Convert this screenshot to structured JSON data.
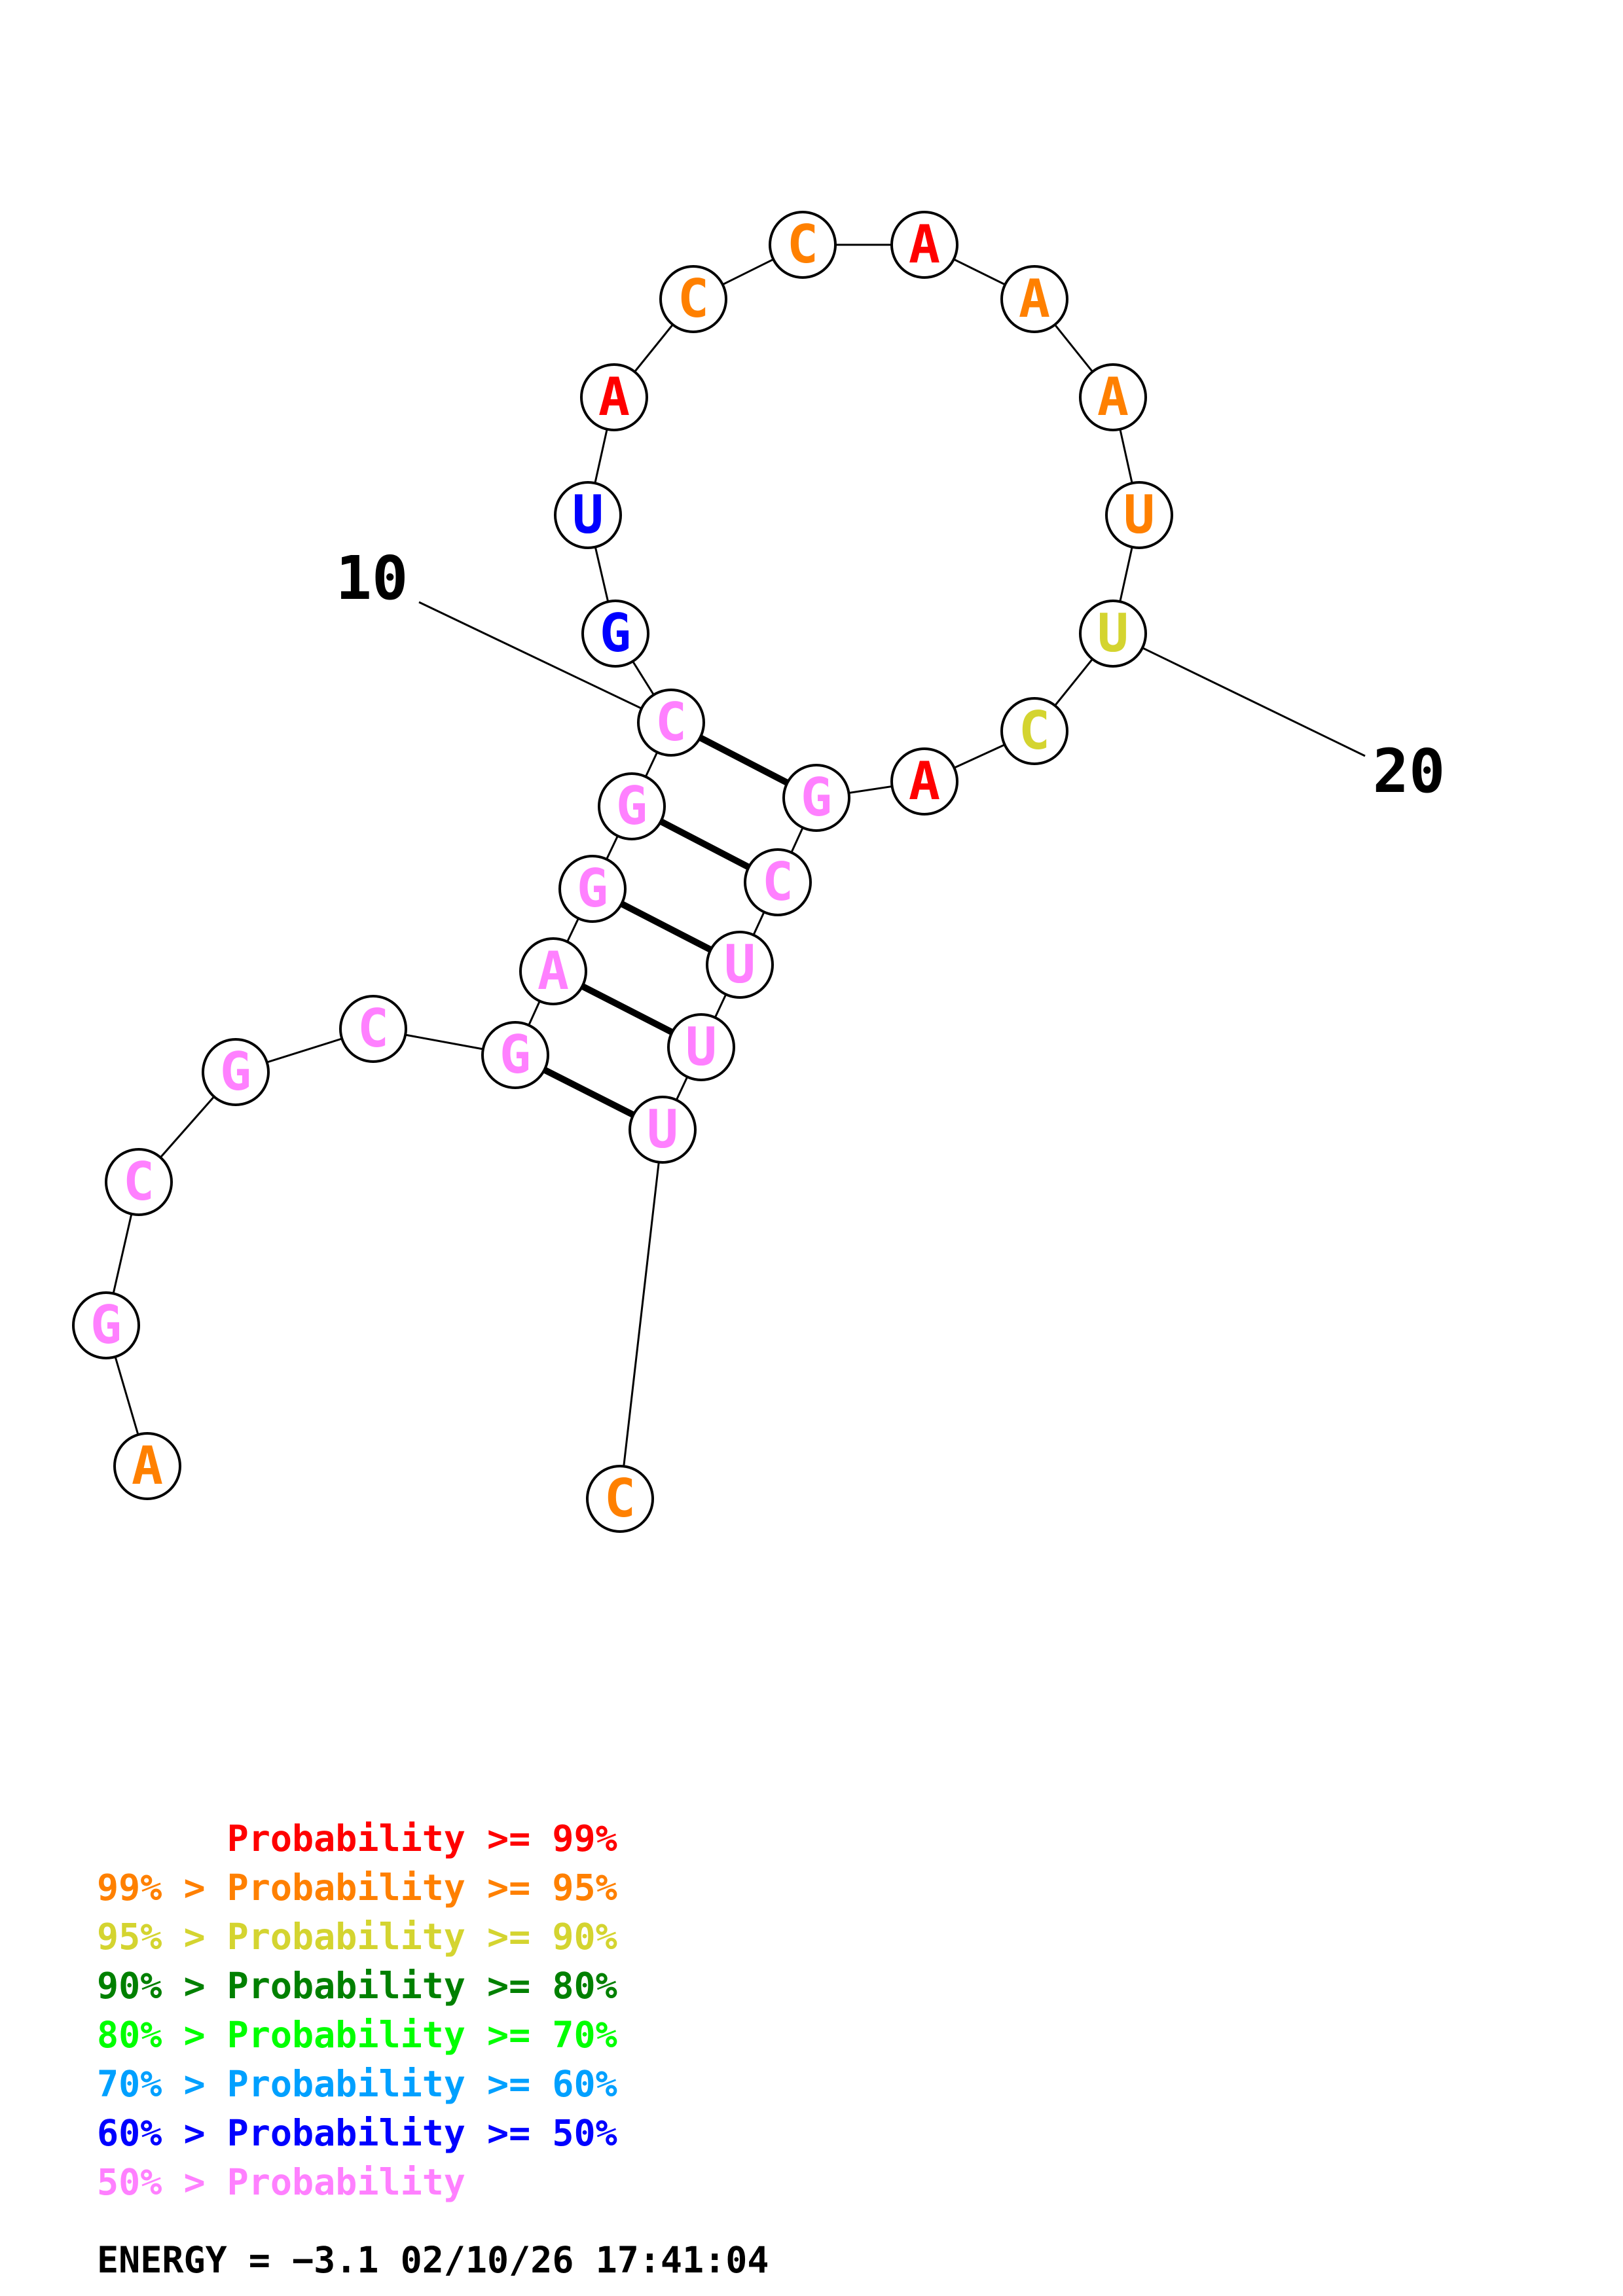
{
  "diagram": {
    "bases": [
      {
        "n": 1,
        "base": "A",
        "prob": ">=99-95"
      },
      {
        "n": 2,
        "base": "G",
        "prob": "<50"
      },
      {
        "n": 3,
        "base": "C",
        "prob": "<50"
      },
      {
        "n": 4,
        "base": "G",
        "prob": "<50"
      },
      {
        "n": 5,
        "base": "C",
        "prob": "<50"
      },
      {
        "n": 6,
        "base": "G",
        "prob": "<50"
      },
      {
        "n": 7,
        "base": "A",
        "prob": "<50"
      },
      {
        "n": 8,
        "base": "G",
        "prob": "<50"
      },
      {
        "n": 9,
        "base": "G",
        "prob": "<50"
      },
      {
        "n": 10,
        "base": "C",
        "prob": "<50"
      },
      {
        "n": 11,
        "base": "G",
        "prob": "60-50"
      },
      {
        "n": 12,
        "base": "U",
        "prob": "60-50"
      },
      {
        "n": 13,
        "base": "A",
        "prob": ">=99"
      },
      {
        "n": 14,
        "base": "C",
        "prob": "99-95"
      },
      {
        "n": 15,
        "base": "C",
        "prob": "99-95"
      },
      {
        "n": 16,
        "base": "A",
        "prob": ">=99"
      },
      {
        "n": 17,
        "base": "A",
        "prob": "99-95"
      },
      {
        "n": 18,
        "base": "A",
        "prob": "99-95"
      },
      {
        "n": 19,
        "base": "U",
        "prob": "99-95"
      },
      {
        "n": 20,
        "base": "U",
        "prob": "95-90"
      },
      {
        "n": 21,
        "base": "C",
        "prob": "95-90"
      },
      {
        "n": 22,
        "base": "A",
        "prob": ">=99"
      },
      {
        "n": 23,
        "base": "G",
        "prob": "<50"
      },
      {
        "n": 24,
        "base": "C",
        "prob": "<50"
      },
      {
        "n": 25,
        "base": "U",
        "prob": "<50"
      },
      {
        "n": 26,
        "base": "U",
        "prob": "<50"
      },
      {
        "n": 27,
        "base": "U",
        "prob": "<50"
      },
      {
        "n": 28,
        "base": "C",
        "prob": "99-95"
      }
    ],
    "pairs": [
      [
        6,
        27
      ],
      [
        7,
        26
      ],
      [
        8,
        25
      ],
      [
        9,
        24
      ],
      [
        10,
        23
      ]
    ],
    "position_labels": [
      {
        "text": "10",
        "base": 10
      },
      {
        "text": "20",
        "base": 20
      }
    ]
  },
  "legend": {
    "items": [
      {
        "prefix": "",
        "label": "Probability",
        "suffix": ">= 99%",
        "color": "#ff0000"
      },
      {
        "prefix": "99% >",
        "label": "Probability",
        "suffix": ">= 95%",
        "color": "#ff8000"
      },
      {
        "prefix": "95% >",
        "label": "Probability",
        "suffix": ">= 90%",
        "color": "#d4d430"
      },
      {
        "prefix": "90% >",
        "label": "Probability",
        "suffix": ">= 80%",
        "color": "#008000"
      },
      {
        "prefix": "80% >",
        "label": "Probability",
        "suffix": ">= 70%",
        "color": "#00ff00"
      },
      {
        "prefix": "70% >",
        "label": "Probability",
        "suffix": ">= 60%",
        "color": "#00a0ff"
      },
      {
        "prefix": "60% >",
        "label": "Probability",
        "suffix": ">= 50%",
        "color": "#0000ff"
      },
      {
        "prefix": "50% >",
        "label": "Probability",
        "suffix": "",
        "color": "#ff80ff"
      }
    ],
    "energy": "ENERGY = −3.1  02/10/26 17:41:04"
  }
}
